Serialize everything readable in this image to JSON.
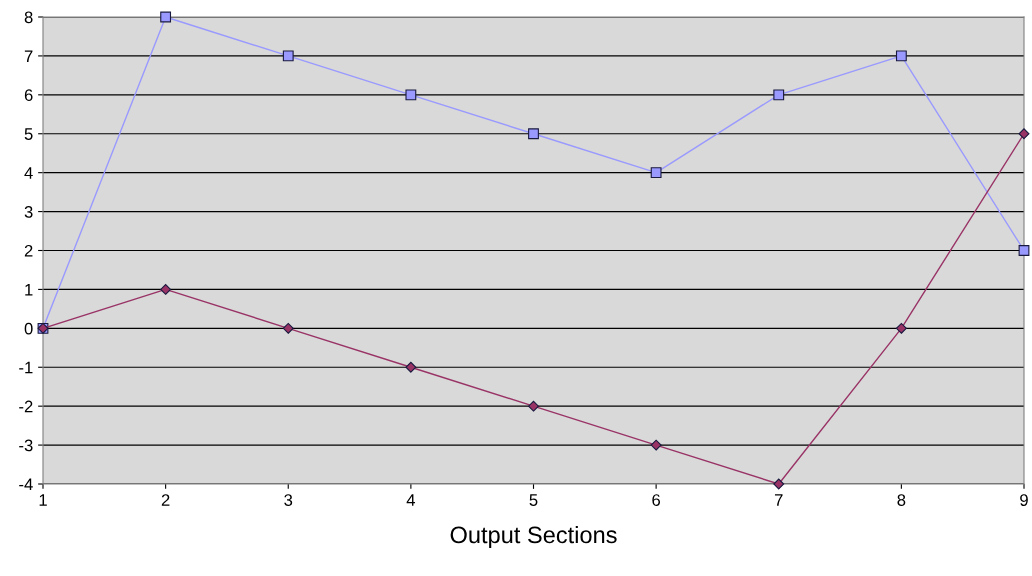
{
  "chart_data": {
    "type": "line",
    "xlabel": "Output Sections",
    "x": [
      1,
      2,
      3,
      4,
      5,
      6,
      7,
      8,
      9
    ],
    "series": [
      {
        "color": "#9999ff",
        "marker": "square",
        "values": [
          0,
          8,
          7,
          6,
          5,
          4,
          6,
          7,
          2
        ]
      },
      {
        "color": "#993366",
        "marker": "diamond",
        "values": [
          0,
          1,
          0,
          -1,
          -2,
          -3,
          -4,
          0,
          5
        ]
      }
    ],
    "xlim": [
      1,
      9
    ],
    "xticks": [
      1,
      2,
      3,
      4,
      5,
      6,
      7,
      8,
      9
    ],
    "ylim": [
      -4,
      8
    ],
    "yticks": [
      -4,
      -3,
      -2,
      -1,
      0,
      1,
      2,
      3,
      4,
      5,
      6,
      7,
      8
    ],
    "grid": "y",
    "line_style": "solid"
  }
}
